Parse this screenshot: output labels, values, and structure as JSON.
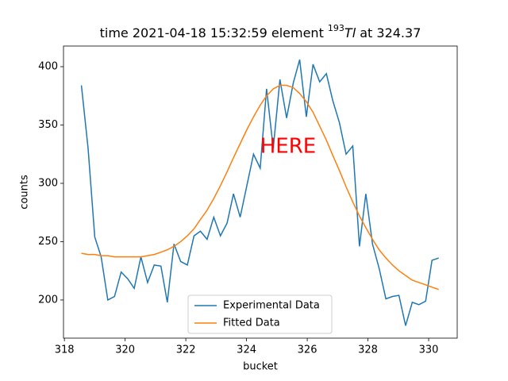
{
  "chart_data": {
    "type": "line",
    "title": {
      "prefix": "time 2021-04-18 15:32:59 element ",
      "isotope": "193",
      "symbol": "Tl",
      "suffix": " at 324.37"
    },
    "xlabel": "bucket",
    "ylabel": "counts",
    "x": [
      318.56,
      318.78,
      319.0,
      319.21,
      319.43,
      319.65,
      319.87,
      320.09,
      320.3,
      320.52,
      320.74,
      320.96,
      321.18,
      321.39,
      321.61,
      321.83,
      322.05,
      322.27,
      322.48,
      322.7,
      322.92,
      323.14,
      323.36,
      323.57,
      323.79,
      324.01,
      324.23,
      324.45,
      324.66,
      324.88,
      325.1,
      325.32,
      325.54,
      325.75,
      325.97,
      326.19,
      326.41,
      326.63,
      326.84,
      327.06,
      327.28,
      327.5,
      327.72,
      327.93,
      328.15,
      328.37,
      328.59,
      328.81,
      329.02,
      329.24,
      329.46,
      329.68,
      329.9,
      330.11,
      330.33
    ],
    "series": [
      {
        "name": "Experimental Data",
        "color": "#1f77b4",
        "values": [
          384,
          330,
          254,
          237,
          200,
          203,
          224,
          218,
          210,
          237,
          215,
          230,
          229,
          198,
          248,
          233,
          230,
          255,
          259,
          252,
          271,
          255,
          266,
          291,
          271,
          298,
          325,
          313,
          381,
          330,
          389,
          356,
          386,
          406,
          357,
          402,
          387,
          394,
          371,
          352,
          325,
          332,
          246,
          291,
          248,
          227,
          201,
          203,
          204,
          178,
          198,
          196,
          199,
          234,
          236
        ]
      },
      {
        "name": "Fitted Data",
        "color": "#ff7f0e",
        "values": [
          240,
          239,
          239,
          238,
          238,
          237,
          237,
          237,
          237,
          237,
          238,
          239,
          241,
          243,
          246,
          250,
          255,
          261,
          269,
          277,
          287,
          298,
          310,
          322,
          334,
          346,
          357,
          367,
          375,
          381,
          384,
          384,
          382,
          377,
          370,
          361,
          349,
          337,
          324,
          311,
          297,
          284,
          272,
          262,
          252,
          243,
          236,
          230,
          225,
          221,
          217,
          215,
          213,
          211,
          209
        ]
      }
    ],
    "xlim": [
      317.97,
      330.94
    ],
    "xticks": [
      318,
      320,
      322,
      324,
      326,
      328,
      330
    ],
    "ylim": [
      167.3,
      417.7
    ],
    "yticks": [
      200,
      250,
      300,
      350,
      400
    ],
    "legend": "lower center",
    "annotation": {
      "text": "HERE",
      "color": "red"
    }
  }
}
